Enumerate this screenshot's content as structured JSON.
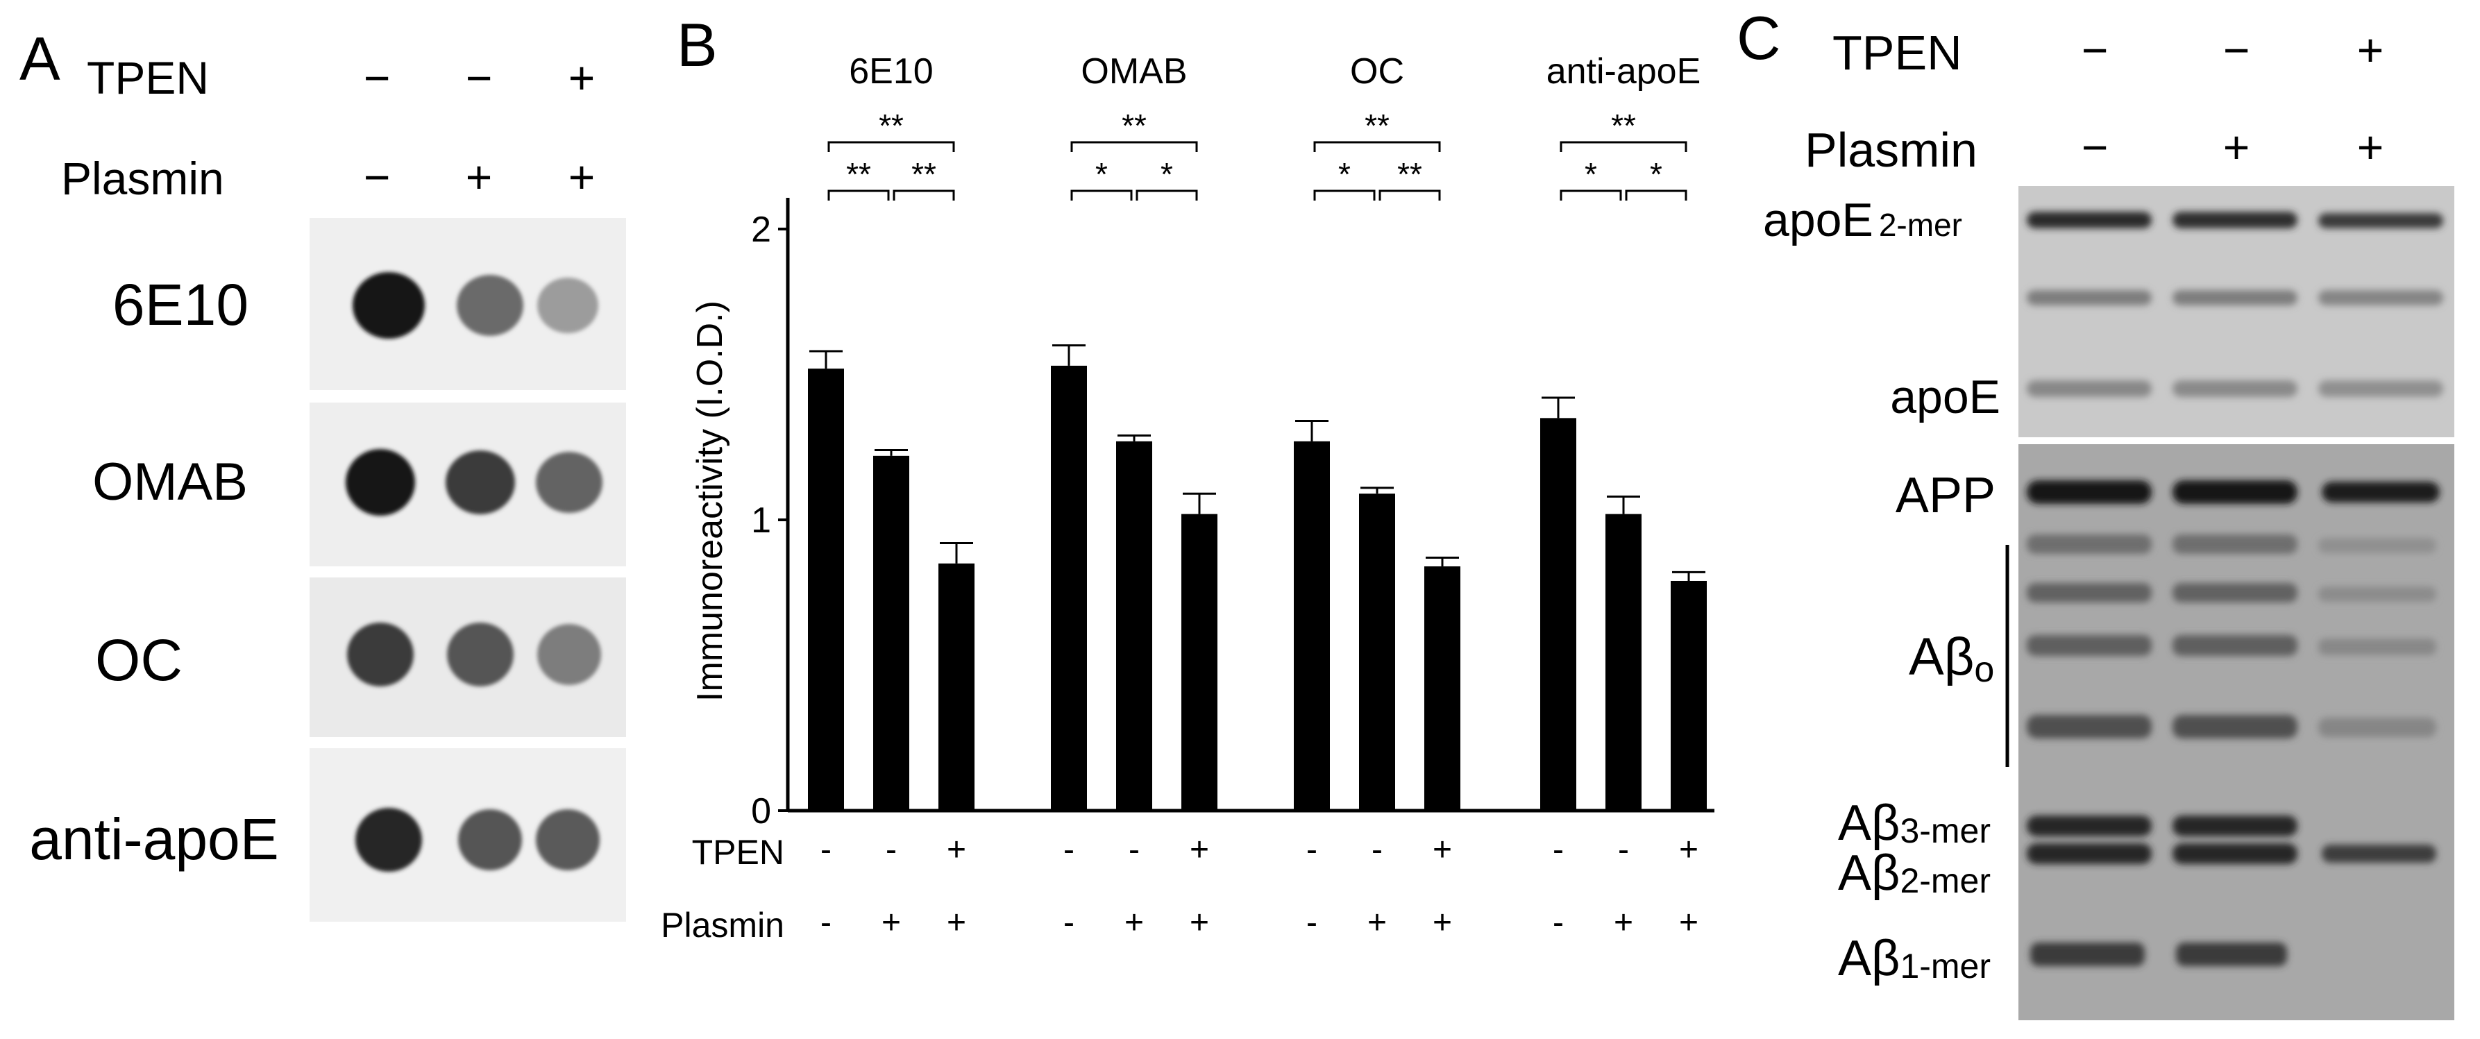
{
  "panelA": {
    "letter": "A",
    "conditions": [
      {
        "name": "TPEN",
        "signs": [
          "−",
          "−",
          "+"
        ]
      },
      {
        "name": "Plasmin",
        "signs": [
          "−",
          "+",
          "+"
        ]
      }
    ],
    "rows": [
      {
        "label": "6E10",
        "intensities": [
          0.97,
          0.58,
          0.36
        ]
      },
      {
        "label": "OMAB",
        "intensities": [
          0.98,
          0.8,
          0.62
        ]
      },
      {
        "label": "OC",
        "intensities": [
          0.8,
          0.68,
          0.5
        ]
      },
      {
        "label": "anti-apoE",
        "intensities": [
          0.9,
          0.68,
          0.66
        ]
      }
    ]
  },
  "panelB": {
    "letter": "B",
    "chart_data": {
      "type": "bar",
      "ylabel": "Immunoreactivity (I.O.D.)",
      "ylim": [
        0,
        2
      ],
      "yticks": [
        0,
        1,
        2
      ],
      "groups": [
        {
          "name": "6E10",
          "values": [
            1.52,
            1.22,
            0.85
          ],
          "errors": [
            0.06,
            0.02,
            0.07
          ],
          "sig": {
            "pair12": "**",
            "pair23": "**",
            "pair13": "**"
          }
        },
        {
          "name": "OMAB",
          "values": [
            1.53,
            1.27,
            1.02
          ],
          "errors": [
            0.07,
            0.02,
            0.07
          ],
          "sig": {
            "pair12": "*",
            "pair23": "*",
            "pair13": "**"
          }
        },
        {
          "name": "OC",
          "values": [
            1.27,
            1.09,
            0.84
          ],
          "errors": [
            0.07,
            0.02,
            0.03
          ],
          "sig": {
            "pair12": "*",
            "pair23": "**",
            "pair13": "**"
          }
        },
        {
          "name": "anti-apoE",
          "values": [
            1.35,
            1.02,
            0.79
          ],
          "errors": [
            0.07,
            0.06,
            0.03
          ],
          "sig": {
            "pair12": "*",
            "pair23": "*",
            "pair13": "**"
          }
        }
      ],
      "conditions": [
        {
          "name": "TPEN",
          "signs": [
            "-",
            "-",
            "+"
          ]
        },
        {
          "name": "Plasmin",
          "signs": [
            "-",
            "+",
            "+"
          ]
        }
      ]
    }
  },
  "panelC": {
    "letter": "C",
    "conditions": [
      {
        "name": "TPEN",
        "signs": [
          "−",
          "−",
          "+"
        ]
      },
      {
        "name": "Plasmin",
        "signs": [
          "−",
          "+",
          "+"
        ]
      }
    ],
    "labels": {
      "apoE_dimer_main": "apoE",
      "apoE_dimer_sub": "2-mer",
      "apoE": "apoE",
      "app": "APP",
      "abeta_o_main": "Aβ",
      "abeta_o_sub": "o",
      "abeta3_main": "Aβ",
      "abeta3_sub": "3-mer",
      "abeta2_main": "Aβ",
      "abeta2_sub": "2-mer",
      "abeta1_main": "Aβ",
      "abeta1_sub": "1-mer"
    }
  },
  "colors": {
    "bar": "#000000",
    "blot_background_a": "#eeeeee",
    "blot_background_c_top": "#c8c8c8",
    "blot_background_c_bottom": "#a9a9a9",
    "band": "#1e1e1e"
  }
}
